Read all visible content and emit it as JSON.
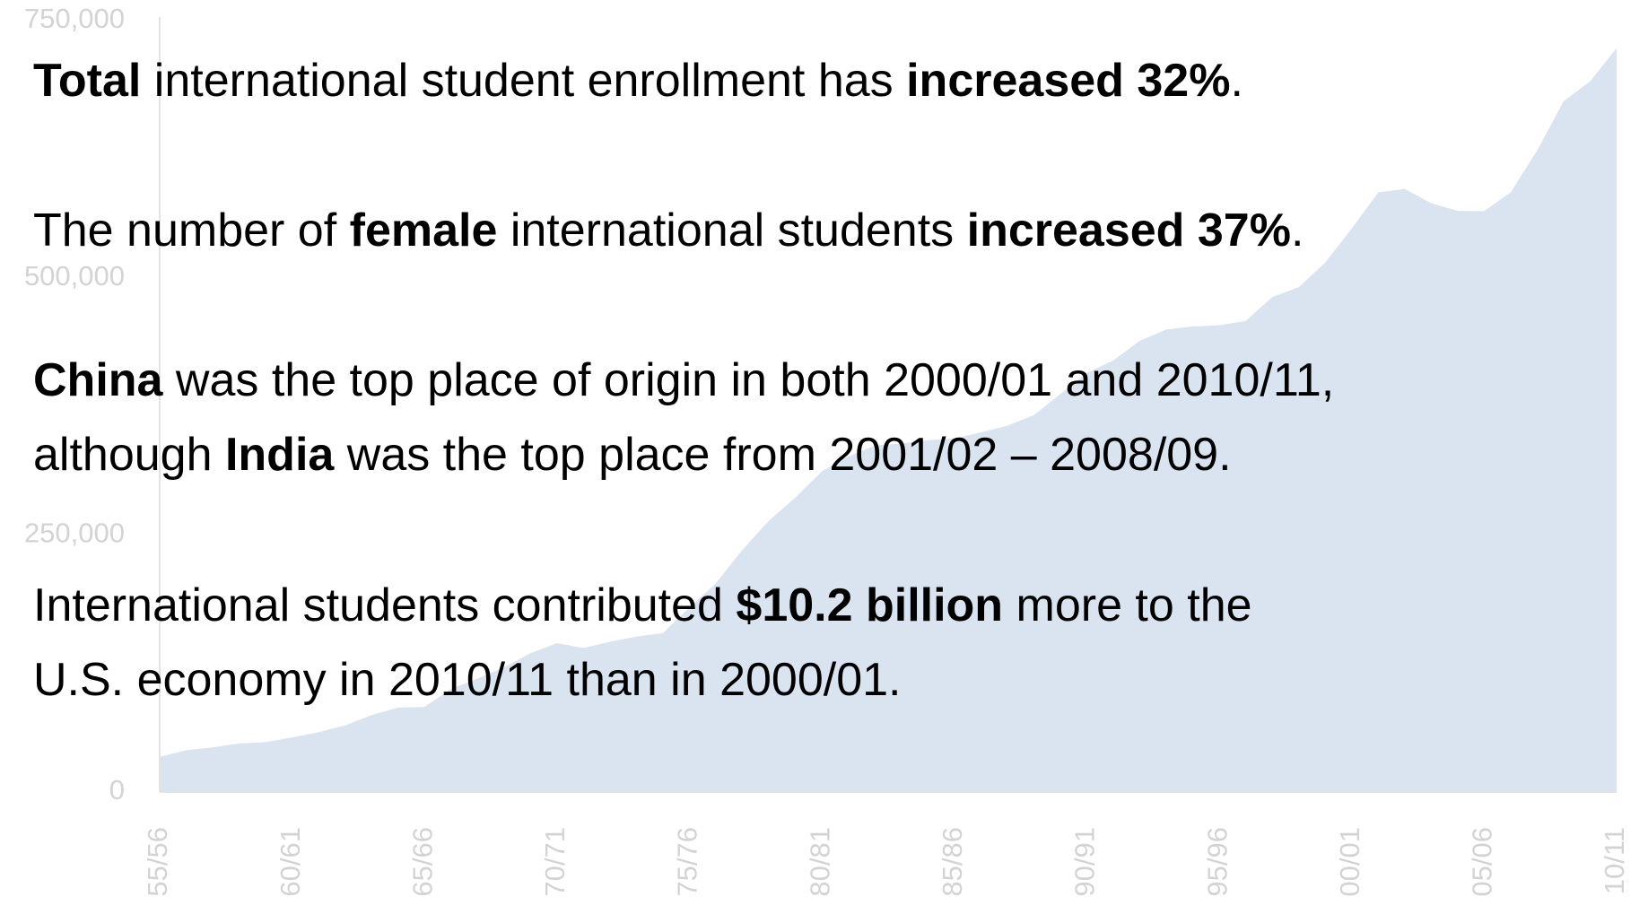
{
  "chart_data": {
    "type": "area",
    "color": "#dae3f0",
    "categories": [
      "55/56",
      null,
      null,
      null,
      null,
      "60/61",
      null,
      null,
      null,
      null,
      "65/66",
      null,
      null,
      null,
      null,
      "70/71",
      null,
      null,
      null,
      null,
      "75/76",
      null,
      null,
      null,
      null,
      "80/81",
      null,
      null,
      null,
      null,
      "85/86",
      null,
      null,
      null,
      null,
      "90/91",
      null,
      null,
      null,
      null,
      "95/96",
      null,
      null,
      null,
      null,
      "00/01",
      null,
      null,
      null,
      null,
      "05/06",
      null,
      null,
      null,
      null,
      "10/11"
    ],
    "values": [
      34232,
      40666,
      43391,
      47245,
      48486,
      53107,
      58086,
      64705,
      74814,
      82045,
      82709,
      100262,
      110315,
      121362,
      134959,
      144708,
      140126,
      146097,
      151066,
      154580,
      179344,
      203068,
      235509,
      263938,
      286343,
      311882,
      326299,
      336985,
      338894,
      342113,
      343777,
      349609,
      356187,
      366354,
      386851,
      407529,
      419585,
      438618,
      449749,
      452635,
      453787,
      457984,
      481280,
      490933,
      514723,
      547867,
      582996,
      586323,
      572509,
      565039,
      564766,
      582984,
      623805,
      671616,
      690923,
      723277
    ],
    "ylim": [
      0,
      750000
    ],
    "yticks": [
      0,
      {
        "value": 250000,
        "label": "250,000"
      },
      {
        "value": 500000,
        "label": "500,000"
      },
      {
        "value": 750000,
        "label": "750,000"
      }
    ]
  },
  "notes": [
    [
      [
        {
          "text": "Total",
          "bold": true
        },
        {
          "text": " international student enrollment has ",
          "bold": false
        },
        {
          "text": "increased 32%",
          "bold": true
        },
        {
          "text": ".",
          "bold": false
        }
      ]
    ],
    [
      [
        {
          "text": "The number of ",
          "bold": false
        },
        {
          "text": "female",
          "bold": true
        },
        {
          "text": " international students ",
          "bold": false
        },
        {
          "text": "increased 37%",
          "bold": true
        },
        {
          "text": ".",
          "bold": false
        }
      ]
    ],
    [
      [
        {
          "text": "China",
          "bold": true
        },
        {
          "text": " was the top place of origin in both 2000/01 and 2010/11,",
          "bold": false
        }
      ],
      [
        {
          "text": "although ",
          "bold": false
        },
        {
          "text": "India",
          "bold": true
        },
        {
          "text": " was the top place from 2001/02 – 2008/09.",
          "bold": false
        }
      ]
    ],
    [
      [
        {
          "text": "International students contributed ",
          "bold": false
        },
        {
          "text": "$10.2 billion",
          "bold": true
        },
        {
          "text": " more to the",
          "bold": false
        }
      ],
      [
        {
          "text": "U.S. economy in 2010/11 than in 2000/01.",
          "bold": false
        }
      ]
    ]
  ]
}
